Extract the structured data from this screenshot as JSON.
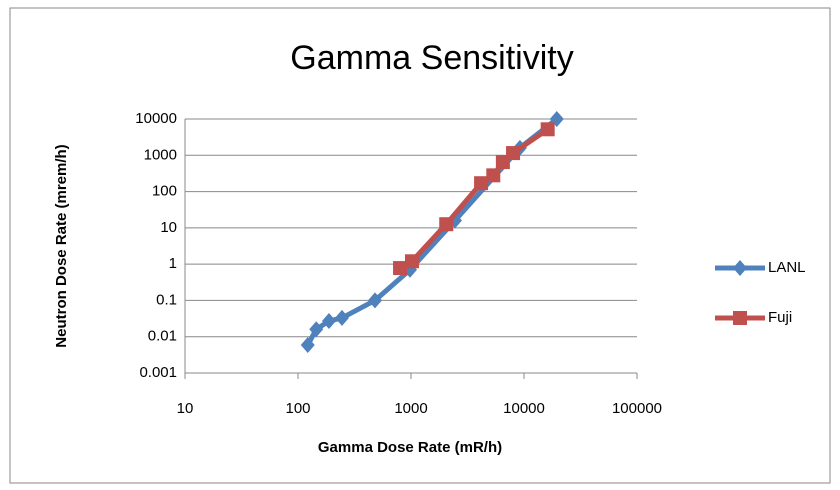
{
  "chart_data": {
    "type": "line",
    "title": "Gamma Sensitivity",
    "xlabel": "Gamma Dose Rate (mR/h)",
    "ylabel": "Neutron Dose Rate (mrem/h)",
    "xscale": "log",
    "yscale": "log",
    "grid": true,
    "legend": "right",
    "xlim": [
      10,
      100000
    ],
    "xticks": [
      10,
      100,
      1000,
      10000,
      100000
    ],
    "ylim": [
      0.001,
      10000
    ],
    "yticks": [
      0.001,
      0.01,
      0.1,
      1,
      10,
      100,
      1000,
      10000
    ],
    "series": [
      {
        "name": "LANL",
        "color": "#4f81bd",
        "marker": "diamond",
        "x": [
          122,
          145,
          188,
          245,
          480,
          980,
          2450,
          9200,
          19500
        ],
        "values": [
          0.0059,
          0.016,
          0.027,
          0.033,
          0.1,
          0.7,
          16,
          1600,
          10000
        ]
      },
      {
        "name": "Fuji",
        "color": "#c0504d",
        "marker": "square",
        "x": [
          800,
          1020,
          2050,
          4170,
          5350,
          6500,
          8000,
          16200
        ],
        "values": [
          0.78,
          1.2,
          12.6,
          170,
          280,
          650,
          1150,
          5200
        ]
      }
    ]
  }
}
